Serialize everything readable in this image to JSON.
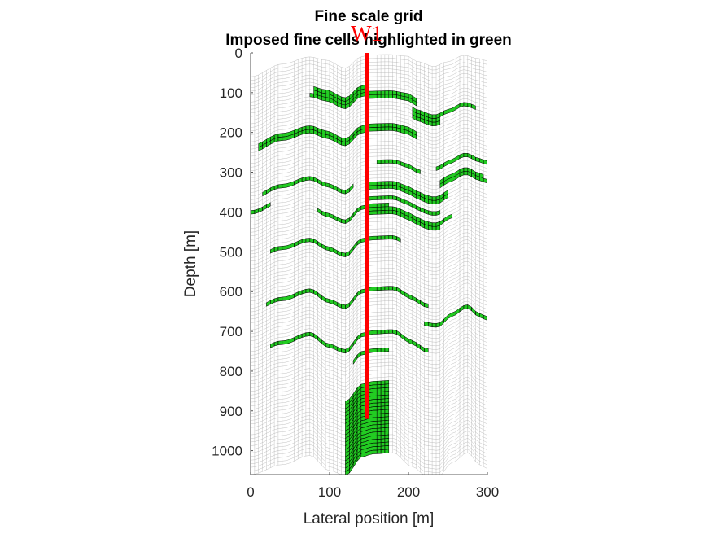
{
  "chart_data": {
    "type": "grid-cross-section",
    "title": "Fine scale grid",
    "subtitle": "Imposed fine cells highlighted in green",
    "xlabel": "Lateral position [m]",
    "ylabel": "Depth [m]",
    "xlim": [
      0,
      300
    ],
    "ylim": [
      0,
      1060
    ],
    "y_reversed": true,
    "xticks": [
      0,
      100,
      200,
      300
    ],
    "yticks": [
      0,
      100,
      200,
      300,
      400,
      500,
      600,
      700,
      800,
      900,
      1000
    ],
    "grid": {
      "columns": 60,
      "layers": 110,
      "line_color": "#a6a6a6"
    },
    "highlight_color": "#22cc22",
    "well": {
      "name": "W1",
      "x": 147,
      "color": "#ff0000"
    },
    "top_surface": [
      [
        0,
        60
      ],
      [
        40,
        28
      ],
      [
        75,
        10
      ],
      [
        95,
        18
      ],
      [
        120,
        38
      ],
      [
        140,
        10
      ],
      [
        150,
        5
      ],
      [
        175,
        4
      ],
      [
        198,
        8
      ],
      [
        212,
        22
      ],
      [
        232,
        34
      ],
      [
        250,
        22
      ],
      [
        270,
        6
      ],
      [
        288,
        14
      ],
      [
        300,
        20
      ]
    ],
    "bottom_surface": [
      [
        0,
        1060
      ],
      [
        40,
        1035
      ],
      [
        75,
        1012
      ],
      [
        100,
        1050
      ],
      [
        120,
        1062
      ],
      [
        142,
        1015
      ],
      [
        155,
        1008
      ],
      [
        180,
        1005
      ],
      [
        205,
        1040
      ],
      [
        222,
        1062
      ],
      [
        238,
        1065
      ],
      [
        255,
        1030
      ],
      [
        275,
        1005
      ],
      [
        290,
        1035
      ],
      [
        300,
        1045
      ]
    ],
    "highlight_bands": [
      {
        "x": [
          0,
          22
        ],
        "layer": 37,
        "thickness": 1
      },
      {
        "x": [
          15,
          128
        ],
        "layer": 33,
        "thickness": 1
      },
      {
        "x": [
          12,
          210
        ],
        "layer": 19,
        "thickness": 2
      },
      {
        "x": [
          80,
          150
        ],
        "layer": 8,
        "thickness": 2
      },
      {
        "x": [
          78,
          210
        ],
        "layer": 10,
        "thickness": 1
      },
      {
        "x": [
          145,
          210
        ],
        "layer": 11,
        "thickness": 1
      },
      {
        "x": [
          205,
          240
        ],
        "layer": 13,
        "thickness": 3
      },
      {
        "x": [
          240,
          285
        ],
        "layer": 13,
        "thickness": 1
      },
      {
        "x": [
          235,
          300
        ],
        "layer": 27,
        "thickness": 1
      },
      {
        "x": [
          160,
          215
        ],
        "layer": 29,
        "thickness": 1
      },
      {
        "x": [
          240,
          295
        ],
        "layer": 31,
        "thickness": 1
      },
      {
        "x": [
          240,
          300
        ],
        "layer": 32,
        "thickness": 1
      },
      {
        "x": [
          145,
          250
        ],
        "layer": 35,
        "thickness": 2
      },
      {
        "x": [
          145,
          240
        ],
        "layer": 39,
        "thickness": 1
      },
      {
        "x": [
          85,
          175
        ],
        "layer": 41,
        "thickness": 1
      },
      {
        "x": [
          145,
          240
        ],
        "layer": 42,
        "thickness": 2
      },
      {
        "x": [
          235,
          255
        ],
        "layer": 42,
        "thickness": 1
      },
      {
        "x": [
          25,
          190
        ],
        "layer": 50,
        "thickness": 1
      },
      {
        "x": [
          20,
          222
        ],
        "layer": 64,
        "thickness": 1
      },
      {
        "x": [
          222,
          300
        ],
        "layer": 69,
        "thickness": 1
      },
      {
        "x": [
          25,
          222
        ],
        "layer": 76,
        "thickness": 1
      },
      {
        "x": [
          130,
          175
        ],
        "layer": 81,
        "thickness": 1
      }
    ],
    "highlight_blocks": [
      {
        "x": [
          120,
          172
        ],
        "layers": [
          90,
          110
        ]
      }
    ]
  }
}
